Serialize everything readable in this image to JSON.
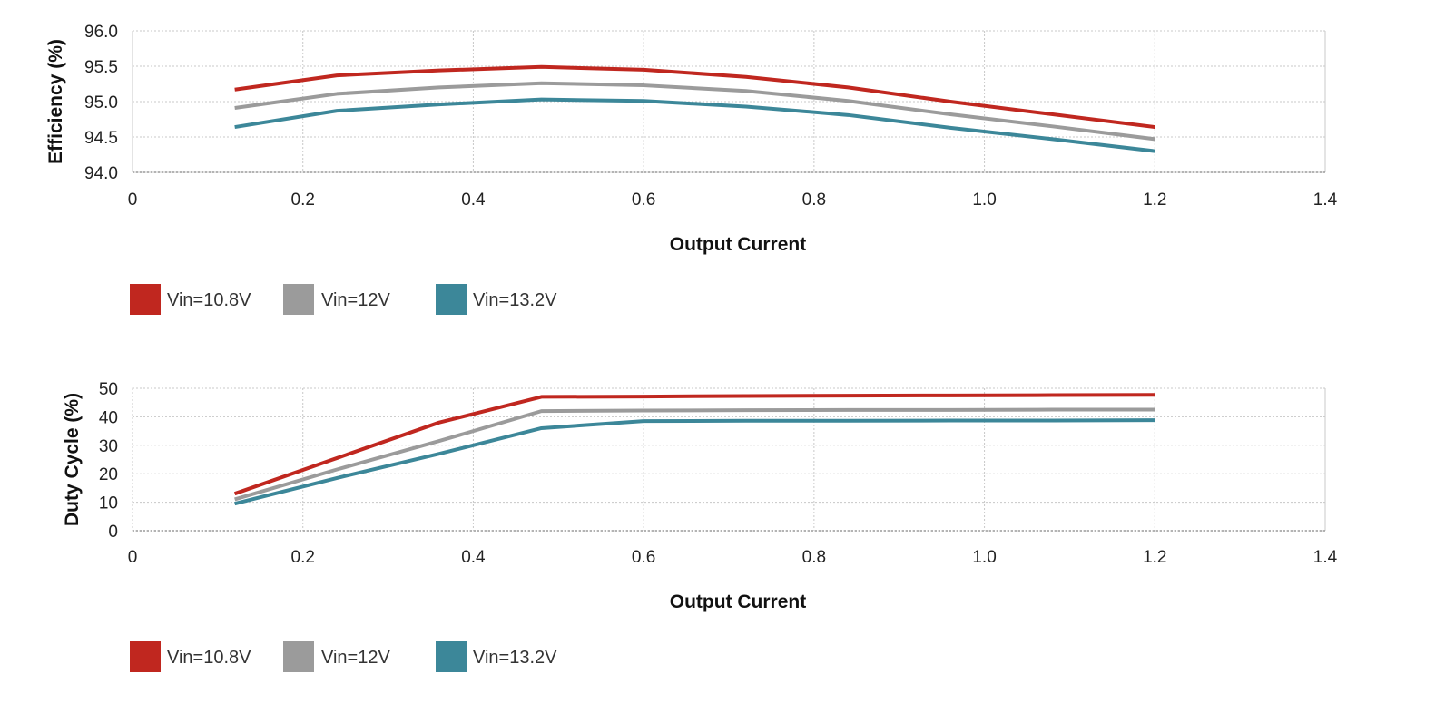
{
  "chart_data": [
    {
      "type": "line",
      "xlabel": "Output Current",
      "ylabel": "Efficiency (%)",
      "xlim": [
        0,
        1.4
      ],
      "ylim": [
        94.0,
        96.0
      ],
      "x_ticks": [
        "0",
        "0.2",
        "0.4",
        "0.6",
        "0.8",
        "1.0",
        "1.2",
        "1.4"
      ],
      "y_ticks": [
        "94.0",
        "94.5",
        "95.0",
        "95.5",
        "96.0"
      ],
      "grid": true,
      "legend_position": "bottom-left",
      "x": [
        0.12,
        0.24,
        0.36,
        0.48,
        0.6,
        0.72,
        0.84,
        0.96,
        1.08,
        1.2
      ],
      "series": [
        {
          "name": "Vin=10.8V",
          "color": "#c0271f",
          "values": [
            95.17,
            95.37,
            95.44,
            95.49,
            95.45,
            95.35,
            95.2,
            95.0,
            94.82,
            94.64
          ]
        },
        {
          "name": "Vin=12V",
          "color": "#9b9b9b",
          "values": [
            94.91,
            95.11,
            95.2,
            95.26,
            95.23,
            95.15,
            95.01,
            94.82,
            94.65,
            94.47
          ]
        },
        {
          "name": "Vin=13.2V",
          "color": "#3c8799",
          "values": [
            94.64,
            94.87,
            94.96,
            95.03,
            95.01,
            94.93,
            94.81,
            94.63,
            94.47,
            94.3
          ]
        }
      ]
    },
    {
      "type": "line",
      "xlabel": "Output Current",
      "ylabel": "Duty Cycle (%)",
      "xlim": [
        0,
        1.4
      ],
      "ylim": [
        0,
        50
      ],
      "x_ticks": [
        "0",
        "0.2",
        "0.4",
        "0.6",
        "0.8",
        "1.0",
        "1.2",
        "1.4"
      ],
      "y_ticks": [
        "0",
        "10",
        "20",
        "30",
        "40",
        "50"
      ],
      "grid": true,
      "legend_position": "bottom-left",
      "x": [
        0.12,
        0.24,
        0.36,
        0.48,
        0.6,
        0.72,
        0.84,
        0.96,
        1.08,
        1.2
      ],
      "series": [
        {
          "name": "Vin=10.8V",
          "color": "#c0271f",
          "values": [
            13,
            25.5,
            38,
            47,
            47.1,
            47.3,
            47.4,
            47.5,
            47.6,
            47.7
          ]
        },
        {
          "name": "Vin=12V",
          "color": "#9b9b9b",
          "values": [
            11,
            21.5,
            31.5,
            42,
            42.2,
            42.3,
            42.4,
            42.4,
            42.5,
            42.5
          ]
        },
        {
          "name": "Vin=13.2V",
          "color": "#3c8799",
          "values": [
            9.5,
            18.5,
            27,
            36,
            38.5,
            38.6,
            38.6,
            38.7,
            38.7,
            38.8
          ]
        }
      ]
    }
  ]
}
